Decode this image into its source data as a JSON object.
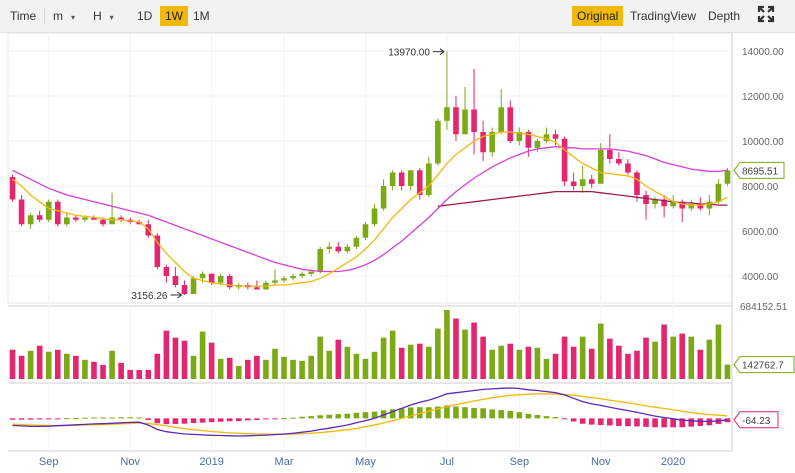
{
  "toolbar": {
    "time_label": "Time",
    "minute_label": "m",
    "hour_label": "H",
    "intervals": [
      "1D",
      "1W",
      "1M"
    ],
    "active_interval": "1W",
    "views": [
      "Original",
      "TradingView",
      "Depth"
    ],
    "active_view": "Original",
    "fullscreen_icon": "expand-icon"
  },
  "colors": {
    "up": "#7ca916",
    "down": "#e3266f",
    "ma_fast": "#f0b90b",
    "ma_mid": "#d63fd6",
    "ma_slow": "#9e1a4a",
    "dif": "#5b2ab6",
    "dea": "#f0b90b",
    "active": "#f0b90b"
  },
  "chart_data": {
    "type": "candlestick",
    "price_axis": {
      "min": 2800,
      "max": 14800,
      "ticks": [
        4000,
        6000,
        8000,
        10000,
        12000,
        14000
      ],
      "tick_labels": [
        "4000.00",
        "6000.00",
        "8000.00",
        "10000.00",
        "12000.00",
        "14000.00"
      ]
    },
    "x_labels": [
      "Sep",
      "Nov",
      "2019",
      "Mar",
      "May",
      "Jul",
      "Sep",
      "Nov",
      "2020"
    ],
    "candles": [
      [
        8400,
        8500,
        7300,
        7400
      ],
      [
        7400,
        7600,
        6200,
        6300
      ],
      [
        6300,
        6800,
        6100,
        6700
      ],
      [
        6700,
        6900,
        6400,
        6500
      ],
      [
        6500,
        7400,
        6400,
        7300
      ],
      [
        7300,
        7400,
        6200,
        6300
      ],
      [
        6300,
        6800,
        6200,
        6600
      ],
      [
        6600,
        6700,
        6400,
        6500
      ],
      [
        6500,
        6700,
        6400,
        6600
      ],
      [
        6600,
        6700,
        6500,
        6500
      ],
      [
        6500,
        6600,
        6200,
        6300
      ],
      [
        6300,
        7700,
        6300,
        6600
      ],
      [
        6600,
        6700,
        6400,
        6500
      ],
      [
        6500,
        6600,
        6300,
        6400
      ],
      [
        6400,
        6500,
        6300,
        6300
      ],
      [
        6300,
        6500,
        5700,
        5800
      ],
      [
        5800,
        5900,
        4300,
        4400
      ],
      [
        4400,
        4500,
        3700,
        4000
      ],
      [
        4000,
        4400,
        3500,
        3600
      ],
      [
        3600,
        3800,
        3156.26,
        3200
      ],
      [
        3200,
        4000,
        3200,
        3900
      ],
      [
        3900,
        4200,
        3700,
        4100
      ],
      [
        4100,
        4100,
        3600,
        3700
      ],
      [
        3700,
        4100,
        3600,
        4000
      ],
      [
        4000,
        4100,
        3400,
        3500
      ],
      [
        3500,
        3700,
        3400,
        3600
      ],
      [
        3600,
        3700,
        3400,
        3500
      ],
      [
        3500,
        3800,
        3400,
        3400
      ],
      [
        3400,
        3800,
        3400,
        3700
      ],
      [
        3700,
        4300,
        3600,
        3800
      ],
      [
        3800,
        4000,
        3700,
        3900
      ],
      [
        3900,
        4100,
        3800,
        4000
      ],
      [
        4000,
        4200,
        3900,
        4100
      ],
      [
        4100,
        4200,
        4000,
        4200
      ],
      [
        4200,
        5300,
        4100,
        5200
      ],
      [
        5200,
        5500,
        5000,
        5300
      ],
      [
        5300,
        5500,
        5000,
        5100
      ],
      [
        5100,
        5400,
        5000,
        5300
      ],
      [
        5300,
        5800,
        5200,
        5700
      ],
      [
        5700,
        6400,
        5600,
        6300
      ],
      [
        6300,
        7200,
        6200,
        7000
      ],
      [
        7000,
        8300,
        6900,
        8000
      ],
      [
        8000,
        8700,
        7800,
        8600
      ],
      [
        8600,
        8700,
        7800,
        8000
      ],
      [
        8000,
        8700,
        7800,
        8700
      ],
      [
        8700,
        8800,
        7400,
        7600
      ],
      [
        7600,
        9300,
        7500,
        9000
      ],
      [
        9000,
        11000,
        8900,
        10900
      ],
      [
        10900,
        13970,
        10500,
        11500
      ],
      [
        11500,
        12000,
        10000,
        10300
      ],
      [
        10300,
        12400,
        10300,
        11400
      ],
      [
        11400,
        13200,
        9400,
        10400
      ],
      [
        10400,
        10900,
        9100,
        9500
      ],
      [
        9500,
        10600,
        9300,
        10400
      ],
      [
        10400,
        12300,
        10300,
        11500
      ],
      [
        11500,
        11800,
        9900,
        10000
      ],
      [
        10000,
        10600,
        9800,
        10400
      ],
      [
        10400,
        10500,
        9300,
        9700
      ],
      [
        9700,
        10100,
        9500,
        10000
      ],
      [
        10000,
        10600,
        9900,
        10300
      ],
      [
        10300,
        10500,
        9800,
        10100
      ],
      [
        10100,
        10200,
        8000,
        8200
      ],
      [
        8200,
        8600,
        7800,
        8000
      ],
      [
        8000,
        8900,
        7700,
        8300
      ],
      [
        8300,
        8500,
        7900,
        8100
      ],
      [
        8100,
        9900,
        8100,
        9600
      ],
      [
        9600,
        10300,
        9000,
        9200
      ],
      [
        9200,
        9500,
        8900,
        9000
      ],
      [
        9000,
        9200,
        8500,
        8600
      ],
      [
        8600,
        8700,
        7300,
        7600
      ],
      [
        7600,
        7800,
        6500,
        7200
      ],
      [
        7200,
        7500,
        7000,
        7400
      ],
      [
        7400,
        7600,
        6600,
        7100
      ],
      [
        7100,
        7600,
        7000,
        7300
      ],
      [
        7300,
        7400,
        6400,
        7000
      ],
      [
        7000,
        7400,
        6900,
        7200
      ],
      [
        7200,
        7500,
        6900,
        7000
      ],
      [
        7000,
        7600,
        6700,
        7300
      ],
      [
        7300,
        8300,
        7200,
        8100
      ],
      [
        8100,
        8800,
        8000,
        8695.51
      ]
    ],
    "ma_fast": [
      8300,
      8000,
      7600,
      7300,
      7000,
      6900,
      6800,
      6700,
      6650,
      6600,
      6550,
      6500,
      6500,
      6450,
      6400,
      6100,
      5500,
      5000,
      4600,
      4200,
      3900,
      3800,
      3700,
      3650,
      3600,
      3550,
      3550,
      3550,
      3550,
      3600,
      3600,
      3650,
      3700,
      3750,
      3900,
      4100,
      4350,
      4600,
      4850,
      5200,
      5600,
      6100,
      6600,
      7000,
      7400,
      7700,
      8000,
      8500,
      9000,
      9400,
      9700,
      10000,
      10200,
      10300,
      10400,
      10400,
      10350,
      10300,
      10200,
      10100,
      9950,
      9600,
      9300,
      9000,
      8800,
      8600,
      8550,
      8500,
      8450,
      8300,
      8000,
      7750,
      7550,
      7300,
      7200,
      7150,
      7150,
      7200,
      7300,
      7500
    ],
    "ma_mid": [
      8700,
      8500,
      8300,
      8100,
      7900,
      7750,
      7600,
      7500,
      7400,
      7300,
      7200,
      7100,
      7000,
      6900,
      6800,
      6700,
      6550,
      6400,
      6250,
      6100,
      5950,
      5800,
      5650,
      5500,
      5350,
      5200,
      5050,
      4900,
      4750,
      4600,
      4500,
      4400,
      4300,
      4250,
      4200,
      4200,
      4200,
      4250,
      4350,
      4500,
      4700,
      4950,
      5250,
      5550,
      5900,
      6250,
      6600,
      7000,
      7400,
      7750,
      8050,
      8350,
      8600,
      8850,
      9050,
      9250,
      9400,
      9550,
      9650,
      9700,
      9750,
      9700,
      9700,
      9650,
      9650,
      9650,
      9650,
      9600,
      9550,
      9450,
      9350,
      9200,
      9050,
      8950,
      8850,
      8750,
      8700,
      8650,
      8650,
      8700
    ],
    "ma_slow": [
      null,
      null,
      null,
      null,
      null,
      null,
      null,
      null,
      null,
      null,
      null,
      null,
      null,
      null,
      null,
      null,
      null,
      null,
      null,
      null,
      null,
      null,
      null,
      null,
      null,
      null,
      null,
      null,
      null,
      null,
      null,
      null,
      null,
      null,
      null,
      null,
      null,
      null,
      null,
      null,
      null,
      null,
      null,
      null,
      null,
      null,
      null,
      7100,
      7150,
      7200,
      7250,
      7300,
      7350,
      7400,
      7450,
      7500,
      7550,
      7600,
      7650,
      7700,
      7750,
      7750,
      7750,
      7750,
      7750,
      7700,
      7650,
      7600,
      7550,
      7500,
      7450,
      7400,
      7350,
      7300,
      7250,
      7250,
      7200,
      7200,
      7150,
      7150
    ],
    "price_annotations": [
      {
        "text": "13970.00",
        "index": 48,
        "value": 13970
      },
      {
        "text": "3156.26",
        "index": 19,
        "value": 3156.26
      }
    ],
    "current_price_label": "8695.51",
    "volume": {
      "max": 684152.5,
      "max_label": "684152.51",
      "current_label": "142762.7",
      "values": [
        290000,
        230000,
        280000,
        330000,
        270000,
        290000,
        250000,
        230000,
        190000,
        170000,
        140000,
        280000,
        160000,
        90000,
        90000,
        90000,
        250000,
        480000,
        410000,
        380000,
        230000,
        470000,
        360000,
        200000,
        210000,
        130000,
        190000,
        230000,
        190000,
        300000,
        220000,
        190000,
        180000,
        230000,
        420000,
        280000,
        390000,
        320000,
        250000,
        200000,
        270000,
        410000,
        480000,
        310000,
        340000,
        350000,
        320000,
        500000,
        684152.5,
        600000,
        490000,
        560000,
        420000,
        290000,
        330000,
        350000,
        290000,
        320000,
        310000,
        200000,
        250000,
        420000,
        320000,
        420000,
        300000,
        550000,
        400000,
        330000,
        250000,
        280000,
        410000,
        370000,
        540000,
        420000,
        450000,
        420000,
        290000,
        390000,
        540000,
        142762.7
      ]
    },
    "macd": {
      "current_label": "-64.23",
      "dif": [
        -320,
        -340,
        -360,
        -360,
        -350,
        -330,
        -310,
        -290,
        -270,
        -250,
        -240,
        -220,
        -200,
        -180,
        -170,
        -300,
        -500,
        -600,
        -650,
        -700,
        -720,
        -740,
        -760,
        -770,
        -780,
        -790,
        -780,
        -770,
        -750,
        -730,
        -700,
        -670,
        -620,
        -570,
        -500,
        -440,
        -370,
        -300,
        -200,
        -100,
        0,
        150,
        300,
        450,
        600,
        720,
        820,
        950,
        1100,
        1150,
        1200,
        1250,
        1300,
        1320,
        1350,
        1360,
        1340,
        1280,
        1250,
        1200,
        1150,
        1050,
        900,
        750,
        650,
        580,
        500,
        420,
        350,
        270,
        180,
        100,
        40,
        -20,
        -80,
        -110,
        -130,
        -140,
        -110,
        -64.23
      ],
      "dea": [
        -260,
        -280,
        -300,
        -310,
        -320,
        -320,
        -320,
        -310,
        -300,
        -290,
        -280,
        -260,
        -250,
        -230,
        -210,
        -230,
        -280,
        -340,
        -400,
        -460,
        -510,
        -550,
        -590,
        -620,
        -650,
        -670,
        -690,
        -700,
        -710,
        -710,
        -710,
        -700,
        -690,
        -670,
        -640,
        -600,
        -560,
        -510,
        -450,
        -380,
        -300,
        -210,
        -110,
        0,
        110,
        220,
        320,
        420,
        520,
        620,
        700,
        780,
        850,
        920,
        980,
        1030,
        1060,
        1080,
        1100,
        1100,
        1090,
        1070,
        1040,
        990,
        930,
        880,
        820,
        760,
        700,
        630,
        560,
        500,
        440,
        380,
        320,
        260,
        210,
        170,
        140,
        110
      ],
      "hist": [
        -60,
        -60,
        -60,
        -50,
        -30,
        -10,
        10,
        20,
        30,
        40,
        40,
        40,
        50,
        50,
        40,
        -70,
        -220,
        -260,
        -250,
        -240,
        -210,
        -190,
        -170,
        -150,
        -130,
        -120,
        -90,
        -70,
        -40,
        -20,
        10,
        30,
        70,
        100,
        140,
        160,
        190,
        210,
        250,
        280,
        300,
        360,
        410,
        450,
        490,
        500,
        500,
        530,
        580,
        530,
        500,
        470,
        450,
        400,
        370,
        330,
        280,
        200,
        150,
        100,
        60,
        -20,
        -140,
        -240,
        -280,
        -300,
        -320,
        -340,
        -350,
        -360,
        -380,
        -400,
        -400,
        -400,
        -400,
        -370,
        -340,
        -310,
        -250,
        -174
      ]
    }
  }
}
